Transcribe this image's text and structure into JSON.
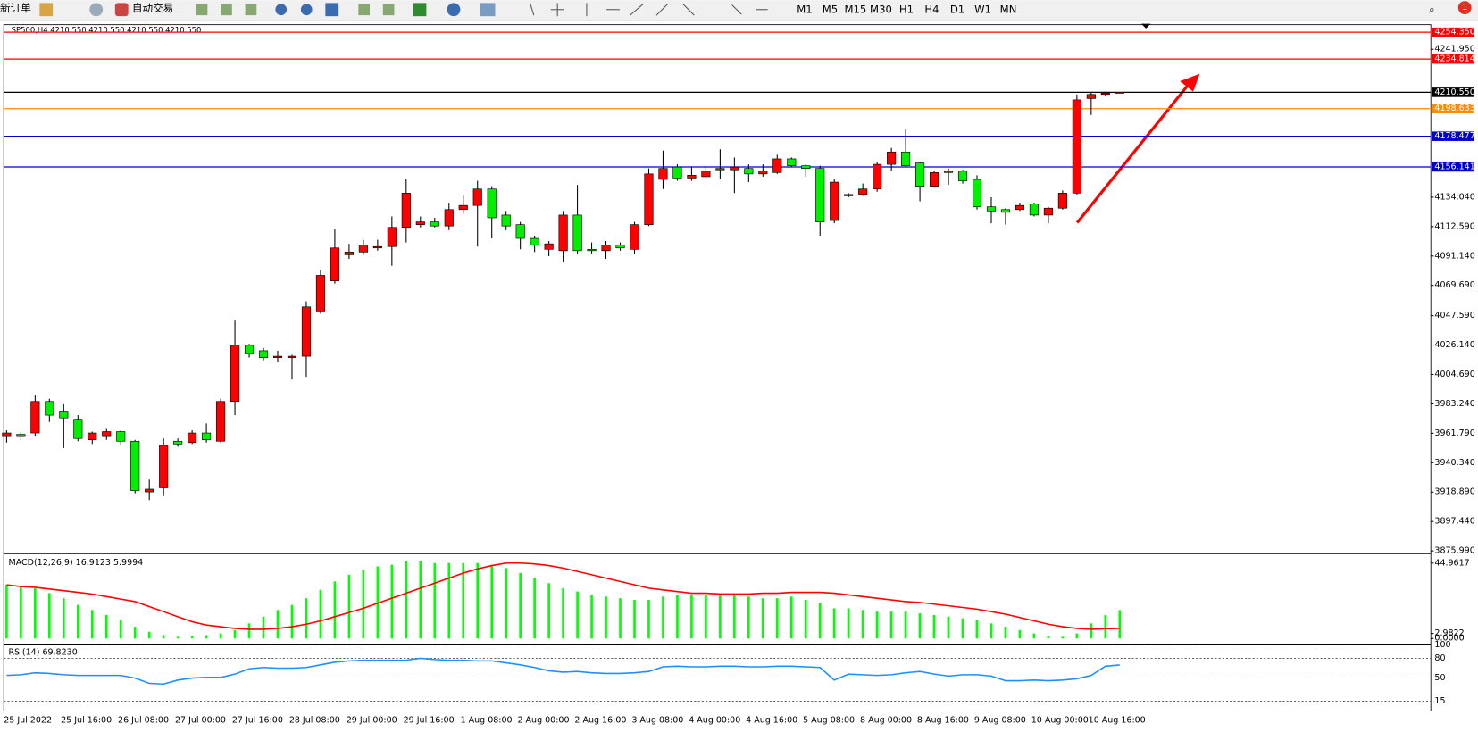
{
  "toolbar": {
    "new_order": "新订单",
    "auto_trading": "自动交易",
    "timeframes": [
      "M1",
      "M5",
      "M15",
      "M30",
      "H1",
      "H4",
      "D1",
      "W1",
      "MN"
    ],
    "alert": "1"
  },
  "chart_data": [
    {
      "type": "candlestick",
      "title": "SP500,H4  4210.550 4210.550 4210.550 4210.550",
      "up_color": "#ff0000",
      "down_color": "#00ee00",
      "categories": [
        "25 Jul 2022",
        null,
        null,
        null,
        "25 Jul 16:00",
        null,
        null,
        null,
        "26 Jul 08:00",
        null,
        null,
        null,
        "27 Jul 00:00",
        null,
        null,
        null,
        "27 Jul 16:00",
        null,
        null,
        null,
        "28 Jul 08:00",
        null,
        null,
        null,
        "29 Jul 00:00",
        null,
        null,
        null,
        "29 Jul 16:00",
        null,
        null,
        null,
        "1 Aug 08:00",
        null,
        null,
        null,
        "2 Aug 00:00",
        null,
        null,
        null,
        "2 Aug 16:00",
        null,
        null,
        null,
        "3 Aug 08:00",
        null,
        null,
        null,
        "4 Aug 00:00",
        null,
        null,
        null,
        "4 Aug 16:00",
        null,
        null,
        null,
        "5 Aug 08:00",
        null,
        null,
        null,
        "8 Aug 00:00",
        null,
        null,
        null,
        "8 Aug 16:00",
        null,
        null,
        null,
        "9 Aug 08:00",
        null,
        null,
        null,
        "10 Aug 00:00",
        null,
        null,
        null,
        "10 Aug 16:00",
        null,
        null
      ],
      "open": [
        3960,
        3961,
        3962,
        3985,
        3978,
        3972,
        3957,
        3960,
        3963,
        3956,
        3919,
        3922,
        3956,
        3955,
        3962,
        3956,
        3985,
        4026,
        4022,
        4017,
        4017,
        4018,
        4051,
        4073,
        4092,
        4094,
        4097,
        4098,
        4112,
        4114,
        4116,
        4113,
        4125,
        4128,
        4140,
        4121,
        4114,
        4104,
        4096,
        4095,
        4121,
        4096,
        4095,
        4099,
        4096,
        4114,
        4147,
        4156,
        4148,
        4149,
        4154,
        4154,
        4155,
        4151,
        4152,
        4162,
        4157,
        4155,
        4117,
        4135,
        4136,
        4140,
        4158,
        4167,
        4159,
        4142,
        4152,
        4153,
        4147,
        4127,
        4125,
        4125,
        4129,
        4121,
        4126,
        4137,
        4206,
        4209,
        4210.55
      ],
      "high": [
        3964,
        3963,
        3990,
        3987,
        3983,
        3975,
        3963,
        3965,
        3964,
        3957,
        3928,
        3958,
        3958,
        3964,
        3969,
        3987,
        4044,
        4027,
        4024,
        4022,
        4019,
        4058,
        4081,
        4111,
        4100,
        4103,
        4103,
        4120,
        4147,
        4120,
        4119,
        4130,
        4136,
        4146,
        4142,
        4124,
        4116,
        4106,
        4102,
        4124,
        4143,
        4101,
        4102,
        4101,
        4116,
        4155,
        4168,
        4158,
        4156,
        4157,
        4169,
        4163,
        4158,
        4158,
        4165,
        4163,
        4158,
        4157,
        4147,
        4137,
        4144,
        4160,
        4170,
        4184,
        4160,
        4153,
        4155,
        4154,
        4150,
        4134,
        4126,
        4130,
        4130,
        4127,
        4139,
        4209,
        4211,
        4211,
        4210.55
      ],
      "low": [
        3955,
        3957,
        3960,
        3970,
        3951,
        3956,
        3954,
        3957,
        3953,
        3918,
        3913,
        3916,
        3952,
        3954,
        3955,
        3955,
        3975,
        4017,
        4015,
        4014,
        4001,
        4003,
        4049,
        4071,
        4089,
        4092,
        4095,
        4084,
        4101,
        4112,
        4112,
        4110,
        4122,
        4098,
        4104,
        4110,
        4096,
        4094,
        4091,
        4087,
        4093,
        4093,
        4089,
        4095,
        4093,
        4113,
        4140,
        4146,
        4146,
        4147,
        4147,
        4137,
        4145,
        4149,
        4151,
        4156,
        4149,
        4106,
        4115,
        4134,
        4135,
        4138,
        4153,
        4156,
        4131,
        4141,
        4143,
        4144,
        4125,
        4115,
        4114,
        4124,
        4120,
        4115,
        4125,
        4136,
        4194,
        4208,
        4210.55
      ],
      "close": [
        3962,
        3960,
        3985,
        3975,
        3973,
        3958,
        3962,
        3963,
        3956,
        3920,
        3921,
        3953,
        3954,
        3962,
        3957,
        3985,
        4026,
        4020,
        4017,
        4018,
        4018,
        4054,
        4077,
        4097,
        4094,
        4099,
        4098,
        4112,
        4137,
        4116,
        4113,
        4125,
        4128,
        4140,
        4119,
        4113,
        4104,
        4099,
        4100,
        4121,
        4095,
        4095,
        4099,
        4097,
        4114,
        4151,
        4155,
        4148,
        4150,
        4153,
        4155,
        4156,
        4151,
        4153,
        4162,
        4157,
        4155,
        4116,
        4145,
        4136,
        4140,
        4158,
        4167,
        4157,
        4142,
        4152,
        4153,
        4146,
        4127,
        4124,
        4123,
        4128,
        4121,
        4126,
        4137,
        4205,
        4209,
        4210,
        4210.55
      ],
      "ylim": [
        3874,
        4258.5
      ],
      "yticks": [
        {
          "value": 4241.95,
          "label": "4241.950"
        },
        {
          "value": 4134.04,
          "label": "4134.040"
        },
        {
          "value": 4112.59,
          "label": "4112.590"
        },
        {
          "value": 4091.14,
          "label": "4091.140"
        },
        {
          "value": 4069.69,
          "label": "4069.690"
        },
        {
          "value": 4047.59,
          "label": "4047.590"
        },
        {
          "value": 4026.14,
          "label": "4026.140"
        },
        {
          "value": 4004.69,
          "label": "4004.690"
        },
        {
          "value": 3983.24,
          "label": "3983.240"
        },
        {
          "value": 3961.79,
          "label": "3961.790"
        },
        {
          "value": 3940.34,
          "label": "3940.340"
        },
        {
          "value": 3918.89,
          "label": "3918.890"
        },
        {
          "value": 3897.44,
          "label": "3897.440"
        },
        {
          "value": 3875.99,
          "label": "3875.990"
        }
      ],
      "levels": [
        {
          "value": 4254.35,
          "label": "4254.350",
          "color": "#ff0000"
        },
        {
          "value": 4234.814,
          "label": "4234.814",
          "color": "#ff0000"
        },
        {
          "value": 4210.55,
          "label": "4210.550",
          "color": "#000000"
        },
        {
          "value": 4198.633,
          "label": "4198.633",
          "color": "#ff8c00"
        },
        {
          "value": 4178.477,
          "label": "4178.477",
          "color": "#0000cc"
        },
        {
          "value": 4156.141,
          "label": "4156.141",
          "color": "#0000cc"
        }
      ]
    },
    {
      "type": "macd",
      "title": "MACD(12,26,9) 16.9123 5.9994",
      "bar_color": "#00ff00",
      "signal_color": "#ff0000",
      "values": [
        32,
        31,
        30,
        27,
        24,
        20,
        17,
        14,
        11,
        7,
        4,
        2,
        1,
        1.5,
        2,
        3,
        5,
        9,
        13,
        17,
        20,
        24,
        29,
        34,
        38,
        41,
        43,
        44,
        46,
        46,
        45,
        45,
        45,
        45,
        44,
        42,
        39,
        36,
        33,
        30,
        28,
        26,
        25,
        24,
        23,
        23,
        25,
        26,
        26,
        26,
        26,
        26,
        25,
        24,
        24,
        25,
        23,
        21,
        18,
        18,
        17,
        16,
        16,
        16,
        15,
        14,
        13,
        12,
        11,
        9,
        7,
        5,
        3,
        1.5,
        1,
        3,
        9,
        14,
        16.9123
      ],
      "signal": [
        32,
        31,
        30.5,
        29.5,
        28.5,
        27.5,
        26.5,
        25,
        23.5,
        22,
        19,
        16,
        13,
        10,
        8,
        7,
        6,
        5.5,
        5.5,
        6,
        7,
        8.5,
        10.5,
        13,
        15.5,
        18,
        21,
        24,
        27,
        30,
        33,
        36,
        39,
        41.5,
        43.5,
        45,
        45,
        44.5,
        43.5,
        42,
        40,
        38,
        36,
        34,
        32,
        30,
        29,
        28,
        27,
        27,
        26.5,
        26.5,
        26.5,
        27,
        27,
        27.5,
        27.5,
        27.5,
        27,
        26,
        25,
        24,
        23,
        22,
        21.5,
        20.5,
        19.5,
        18.5,
        17.5,
        16,
        14.5,
        12.5,
        10.5,
        8.5,
        7,
        6,
        5.5,
        5.8,
        5.9994
      ],
      "ylim": [
        -2.25,
        49.5
      ],
      "yticks": [
        44.9617,
        2.9822,
        {
          "value": 0,
          "label": "0.0000"
        }
      ]
    },
    {
      "type": "rsi",
      "title": "RSI(14) 69.8230",
      "color": "#1e90ff",
      "values": [
        54,
        55,
        58,
        57,
        55,
        54,
        54,
        54,
        54,
        50,
        42,
        41,
        47,
        50,
        51,
        51,
        56,
        64,
        66,
        65,
        65,
        66,
        70,
        74,
        76,
        77,
        77,
        77,
        77,
        80,
        78,
        77,
        77,
        76,
        76,
        73,
        70,
        66,
        61,
        59,
        60,
        58,
        57,
        57,
        58,
        60,
        67,
        68,
        67,
        67,
        68,
        68,
        67,
        67,
        68,
        68,
        67,
        66,
        47,
        56,
        55,
        54,
        55,
        58,
        60,
        56,
        53,
        55,
        55,
        53,
        46,
        46,
        47,
        46,
        47,
        49,
        54,
        68,
        69.823
      ],
      "ylim": [
        0,
        100
      ],
      "yticks": [
        100,
        80,
        50,
        15
      ]
    }
  ]
}
